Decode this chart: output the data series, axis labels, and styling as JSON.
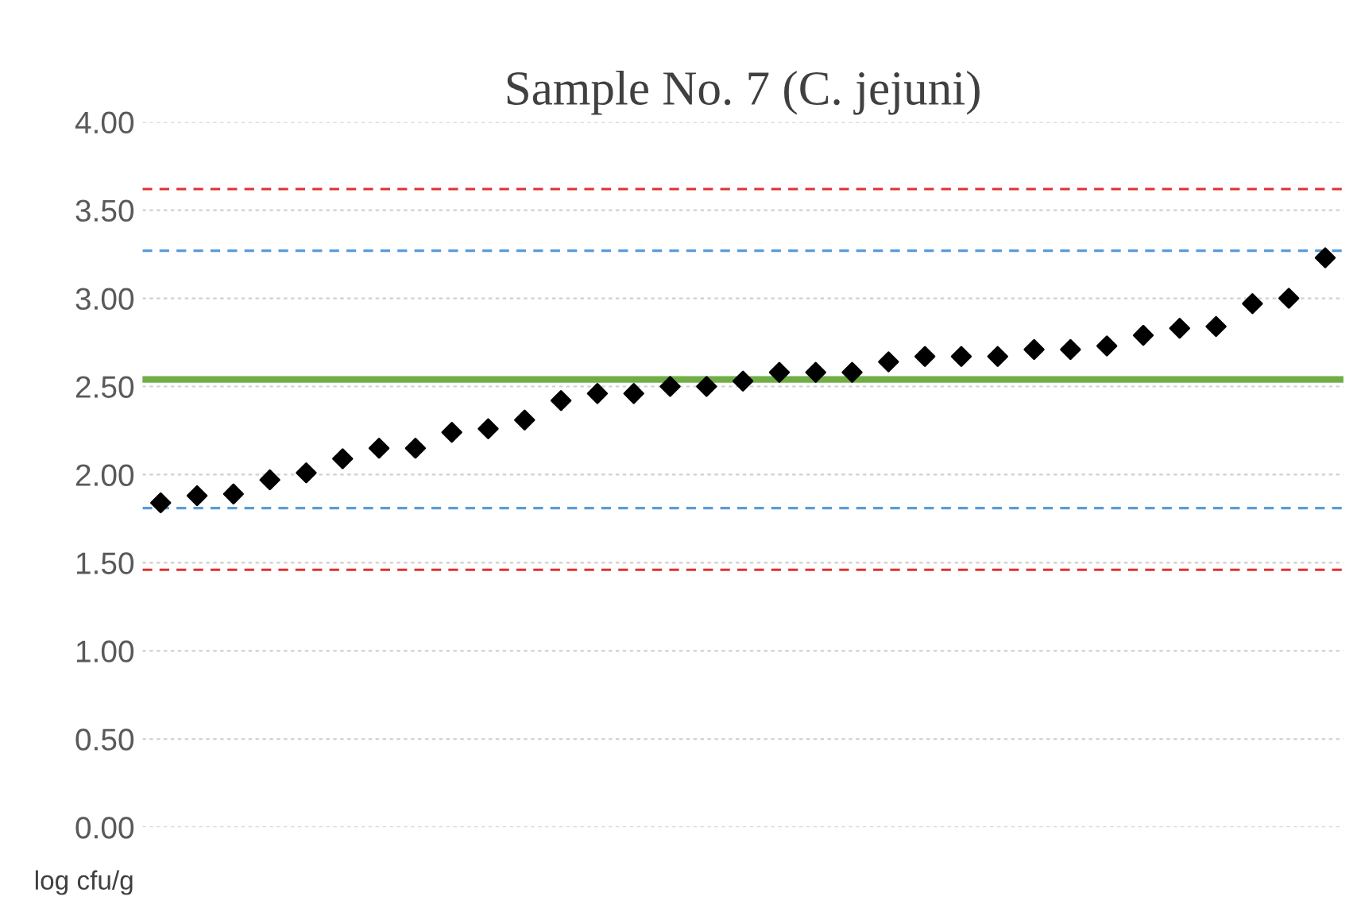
{
  "chart_data": {
    "type": "scatter",
    "title": "Sample No. 7 (C. jejuni)",
    "ylabel": "log cfu/g",
    "categories": [
      null,
      null,
      null,
      null,
      null,
      null,
      null,
      null,
      null,
      null,
      null,
      null,
      null,
      null,
      null,
      null,
      null,
      null,
      null,
      null,
      null,
      null,
      null,
      null,
      null,
      null,
      null,
      null,
      null,
      null,
      null,
      null,
      null
    ],
    "series": [
      {
        "color": "#000000",
        "values": [
          1.84,
          1.88,
          1.89,
          1.97,
          2.01,
          2.09,
          2.15,
          2.15,
          2.24,
          2.26,
          2.31,
          2.42,
          2.46,
          2.46,
          2.5,
          2.5,
          2.53,
          2.58,
          2.58,
          2.58,
          2.64,
          2.67,
          2.67,
          2.67,
          2.71,
          2.71,
          2.73,
          2.79,
          2.83,
          2.84,
          2.97,
          3.0,
          3.23
        ]
      }
    ],
    "marker": "diamond",
    "ylim": [
      0,
      4
    ],
    "yticks": [
      {
        "value": 0,
        "label": "0.00"
      },
      {
        "value": 0.5,
        "label": "0.50"
      },
      {
        "value": 1,
        "label": "1.00"
      },
      {
        "value": 1.5,
        "label": "1.50"
      },
      {
        "value": 2,
        "label": "2.00"
      },
      {
        "value": 2.5,
        "label": "2.50"
      },
      {
        "value": 3,
        "label": "3.00"
      },
      {
        "value": 3.5,
        "label": "3.50"
      },
      {
        "value": 4,
        "label": "4.00"
      }
    ],
    "grid": "y",
    "ref_lines": [
      {
        "axis": "y",
        "value": 3.62,
        "color": "#e03030",
        "line_style": "dashed"
      },
      {
        "axis": "y",
        "value": 3.27,
        "color": "#5b9bd5",
        "line_style": "dashed"
      },
      {
        "axis": "y",
        "value": 2.54,
        "color": "#70ad47",
        "line_style": "solid"
      },
      {
        "axis": "y",
        "value": 1.81,
        "color": "#5b9bd5",
        "line_style": "dashed"
      },
      {
        "axis": "y",
        "value": 1.46,
        "color": "#e03030",
        "line_style": "dashed"
      }
    ]
  }
}
